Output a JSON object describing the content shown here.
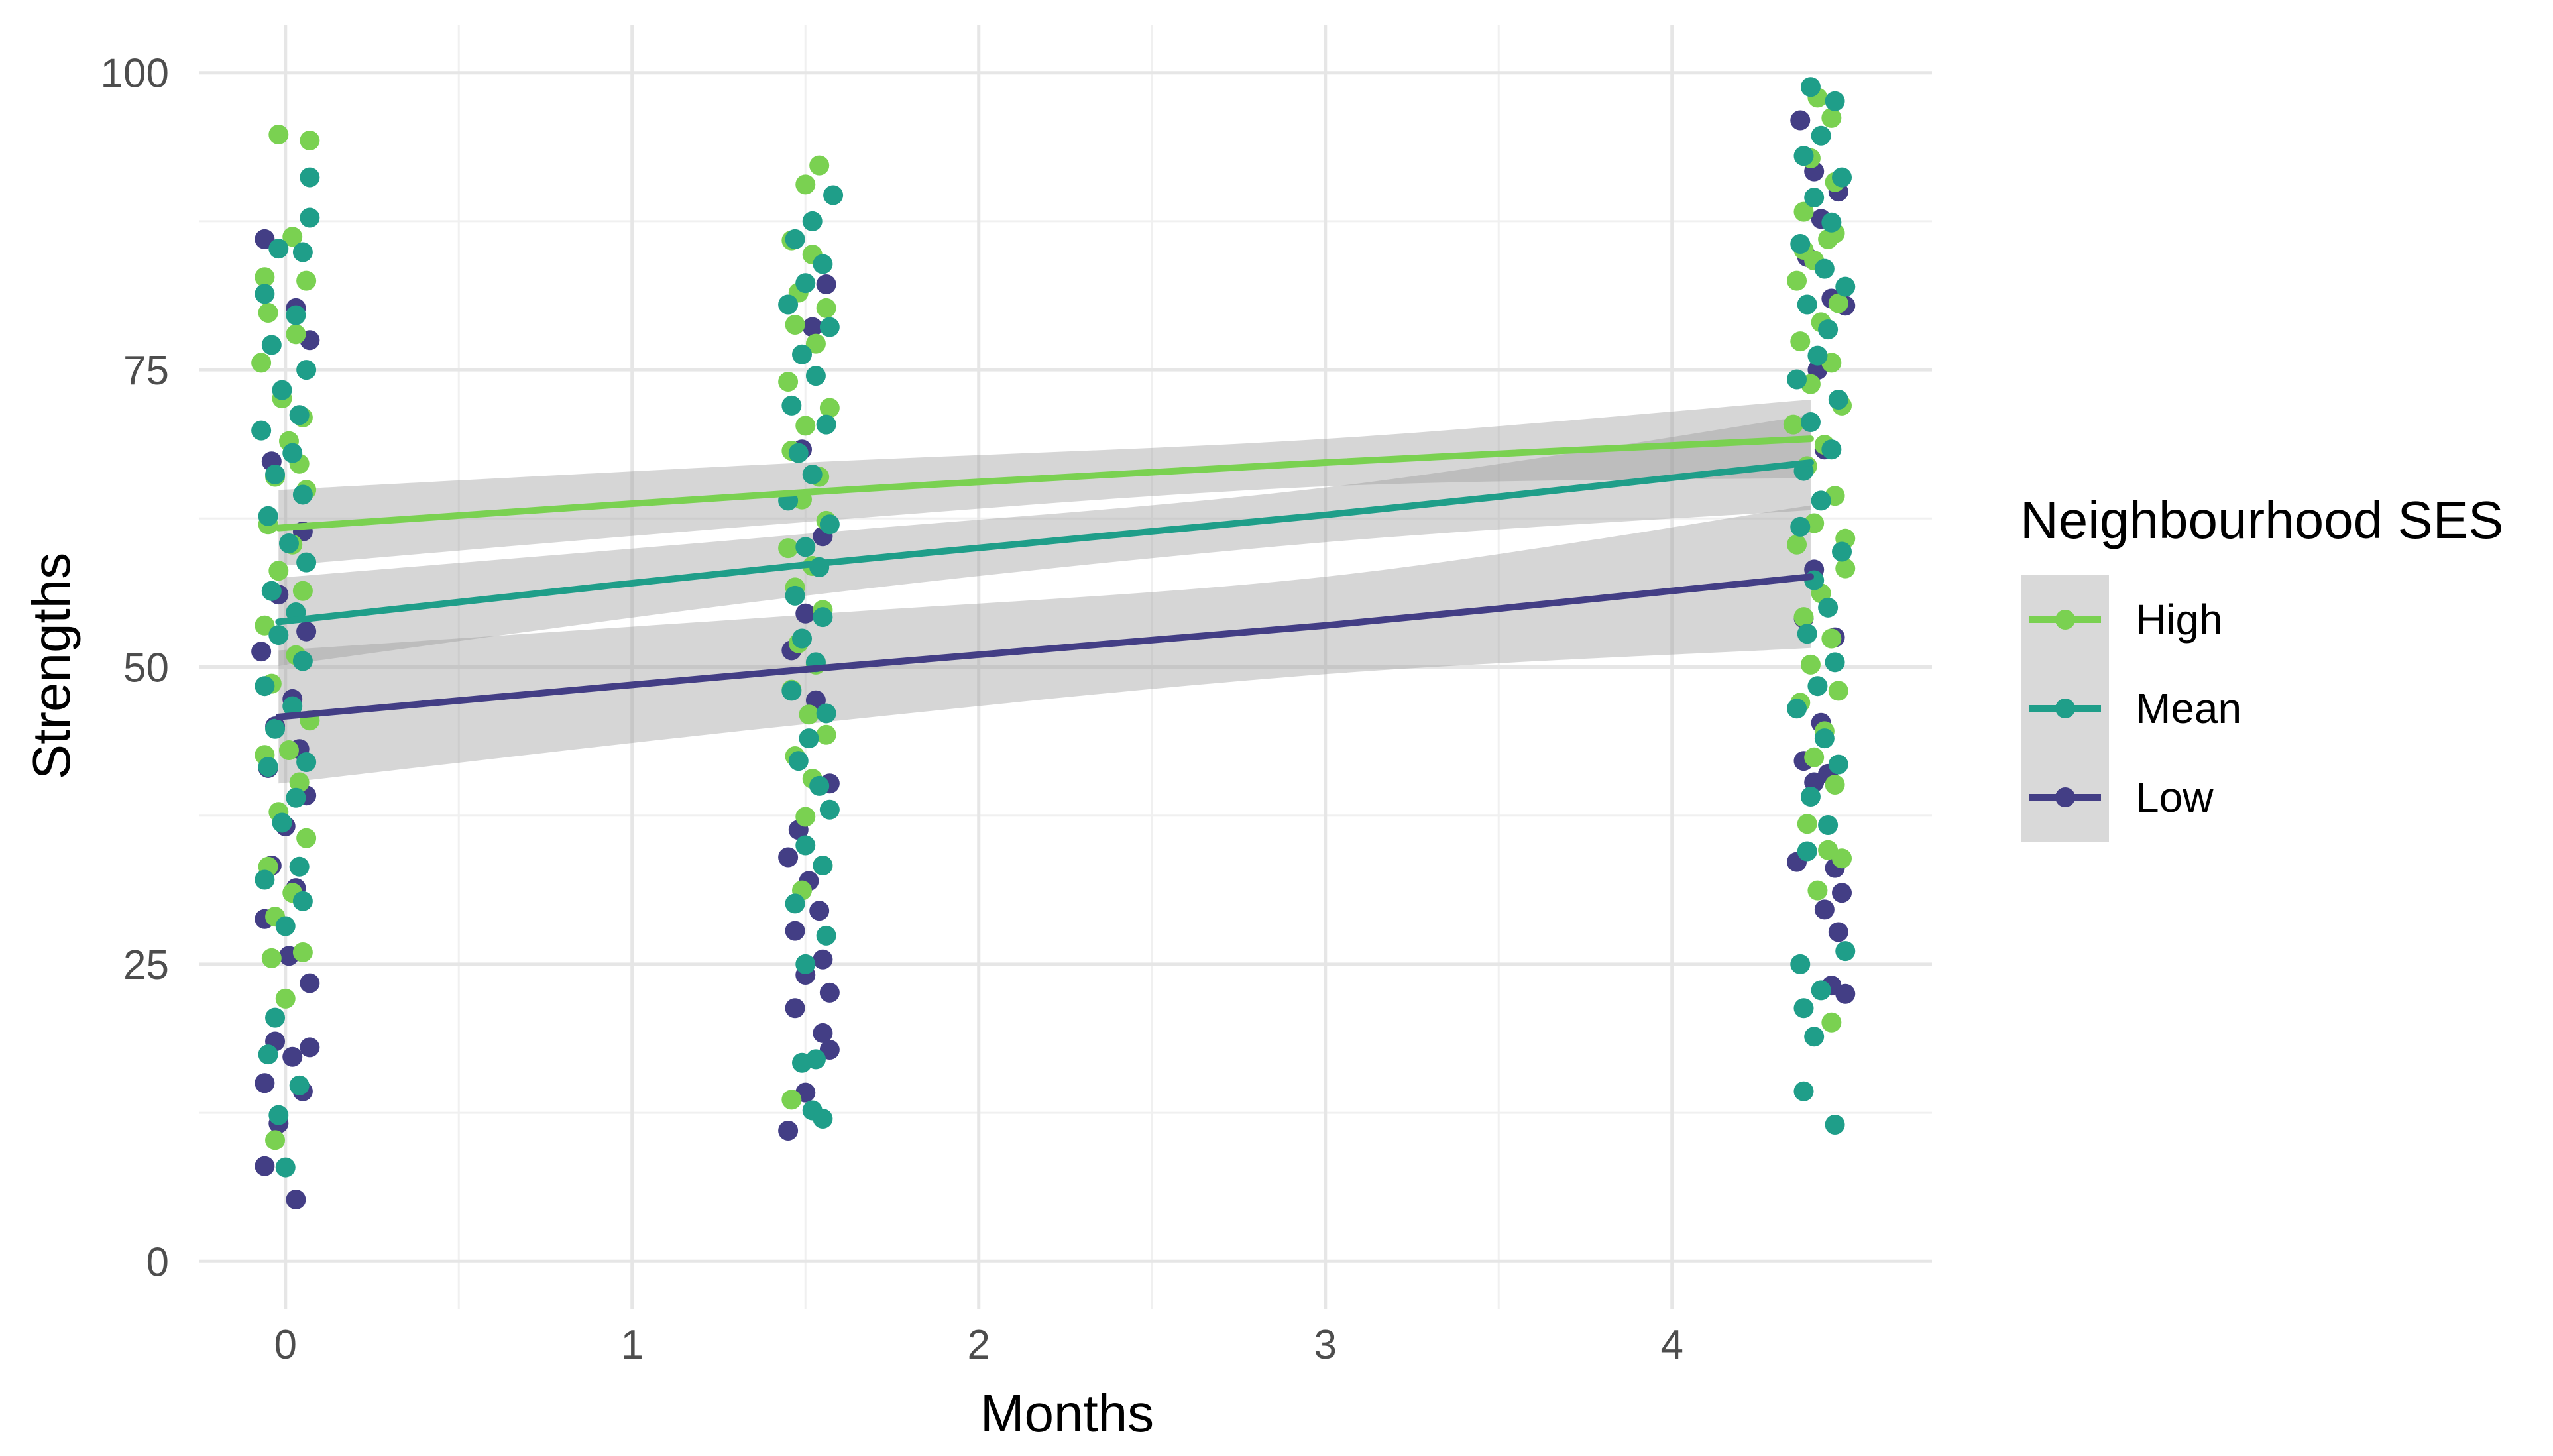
{
  "chart_data": {
    "type": "scatter",
    "title": "",
    "xlabel": "Months",
    "ylabel": "Strengths",
    "xlim": [
      -0.25,
      4.75
    ],
    "ylim": [
      -4,
      104
    ],
    "xticks": [
      0,
      1,
      2,
      3,
      4
    ],
    "yticks": [
      0,
      25,
      50,
      75,
      100
    ],
    "grid": true,
    "legend": {
      "title": "Neighbourhood SES",
      "position": "right"
    },
    "series": [
      {
        "name": "High",
        "color": "#7AD151",
        "smooth": {
          "x": [
            -0.02,
            1.5,
            3.0,
            4.4
          ],
          "y": [
            61.7,
            64.7,
            67.2,
            69.2
          ],
          "band": [
            3.2,
            2.5,
            2.0,
            3.3
          ]
        },
        "points": [
          [
            -0.02,
            94.8
          ],
          [
            0.07,
            94.3
          ],
          [
            -0.05,
            79.8
          ],
          [
            0.02,
            86.2
          ],
          [
            0.06,
            82.5
          ],
          [
            -0.06,
            82.8
          ],
          [
            0.03,
            78.0
          ],
          [
            -0.01,
            72.6
          ],
          [
            0.05,
            71.0
          ],
          [
            -0.07,
            75.6
          ],
          [
            0.01,
            69.0
          ],
          [
            0.04,
            67.1
          ],
          [
            -0.03,
            66.0
          ],
          [
            0.06,
            64.9
          ],
          [
            -0.05,
            62.0
          ],
          [
            0.02,
            60.3
          ],
          [
            -0.02,
            58.1
          ],
          [
            0.05,
            56.4
          ],
          [
            -0.06,
            53.5
          ],
          [
            0.03,
            51.0
          ],
          [
            -0.04,
            48.6
          ],
          [
            0.07,
            45.5
          ],
          [
            0.01,
            43.0
          ],
          [
            -0.06,
            42.6
          ],
          [
            0.04,
            40.3
          ],
          [
            -0.02,
            37.8
          ],
          [
            0.06,
            35.6
          ],
          [
            -0.05,
            33.2
          ],
          [
            0.02,
            31.0
          ],
          [
            -0.03,
            29.0
          ],
          [
            0.05,
            26.0
          ],
          [
            -0.04,
            25.5
          ],
          [
            0.0,
            22.1
          ],
          [
            -0.03,
            10.2
          ],
          [
            1.54,
            92.2
          ],
          [
            1.5,
            90.6
          ],
          [
            1.46,
            85.9
          ],
          [
            1.52,
            84.7
          ],
          [
            1.48,
            81.5
          ],
          [
            1.56,
            80.2
          ],
          [
            1.47,
            78.8
          ],
          [
            1.53,
            77.2
          ],
          [
            1.45,
            74.0
          ],
          [
            1.57,
            71.8
          ],
          [
            1.5,
            70.3
          ],
          [
            1.46,
            68.2
          ],
          [
            1.54,
            66.0
          ],
          [
            1.49,
            64.1
          ],
          [
            1.56,
            62.3
          ],
          [
            1.45,
            60.0
          ],
          [
            1.52,
            58.5
          ],
          [
            1.47,
            56.7
          ],
          [
            1.55,
            54.8
          ],
          [
            1.48,
            52.0
          ],
          [
            1.53,
            50.2
          ],
          [
            1.46,
            48.1
          ],
          [
            1.51,
            46.0
          ],
          [
            1.56,
            44.3
          ],
          [
            1.47,
            42.5
          ],
          [
            1.52,
            40.6
          ],
          [
            1.5,
            37.4
          ],
          [
            1.55,
            33.3
          ],
          [
            1.49,
            31.2
          ],
          [
            1.46,
            13.6
          ],
          [
            4.42,
            97.9
          ],
          [
            4.46,
            96.2
          ],
          [
            4.4,
            92.8
          ],
          [
            4.47,
            90.8
          ],
          [
            4.38,
            88.3
          ],
          [
            4.45,
            86.0
          ],
          [
            4.41,
            84.2
          ],
          [
            4.36,
            82.5
          ],
          [
            4.48,
            80.6
          ],
          [
            4.43,
            79.0
          ],
          [
            4.37,
            77.4
          ],
          [
            4.46,
            75.6
          ],
          [
            4.4,
            73.8
          ],
          [
            4.49,
            72.0
          ],
          [
            4.35,
            70.4
          ],
          [
            4.44,
            68.7
          ],
          [
            4.39,
            66.9
          ],
          [
            4.47,
            64.4
          ],
          [
            4.41,
            62.1
          ],
          [
            4.36,
            60.3
          ],
          [
            4.5,
            58.3
          ],
          [
            4.43,
            56.2
          ],
          [
            4.38,
            54.2
          ],
          [
            4.46,
            52.4
          ],
          [
            4.4,
            50.2
          ],
          [
            4.48,
            48.0
          ],
          [
            4.37,
            47.0
          ],
          [
            4.44,
            44.6
          ],
          [
            4.41,
            42.4
          ],
          [
            4.47,
            40.1
          ],
          [
            4.39,
            36.8
          ],
          [
            4.45,
            34.6
          ],
          [
            4.49,
            33.9
          ],
          [
            4.42,
            31.2
          ],
          [
            4.46,
            20.1
          ],
          [
            4.47,
            86.5
          ],
          [
            4.38,
            85.1
          ],
          [
            4.5,
            60.8
          ]
        ]
      },
      {
        "name": "Mean",
        "color": "#1F9E89",
        "smooth": {
          "x": [
            -0.02,
            1.5,
            3.0,
            4.4
          ],
          "y": [
            53.8,
            58.6,
            62.8,
            67.2
          ],
          "band": [
            3.7,
            2.6,
            2.3,
            4.0
          ]
        },
        "points": [
          [
            0.07,
            91.2
          ],
          [
            0.07,
            87.8
          ],
          [
            -0.02,
            85.2
          ],
          [
            0.05,
            84.9
          ],
          [
            -0.06,
            81.4
          ],
          [
            0.03,
            79.6
          ],
          [
            -0.04,
            77.1
          ],
          [
            0.06,
            75.0
          ],
          [
            -0.01,
            73.3
          ],
          [
            0.04,
            71.2
          ],
          [
            -0.07,
            69.9
          ],
          [
            0.02,
            68.0
          ],
          [
            -0.03,
            66.2
          ],
          [
            0.05,
            64.5
          ],
          [
            -0.05,
            62.7
          ],
          [
            0.01,
            60.4
          ],
          [
            0.06,
            58.8
          ],
          [
            -0.04,
            56.4
          ],
          [
            0.03,
            54.6
          ],
          [
            -0.02,
            52.7
          ],
          [
            0.05,
            50.5
          ],
          [
            -0.06,
            48.4
          ],
          [
            0.02,
            46.7
          ],
          [
            -0.03,
            44.8
          ],
          [
            0.06,
            42.0
          ],
          [
            -0.05,
            41.6
          ],
          [
            0.03,
            39.0
          ],
          [
            -0.01,
            36.9
          ],
          [
            0.04,
            33.2
          ],
          [
            -0.06,
            32.1
          ],
          [
            0.05,
            30.3
          ],
          [
            0.0,
            28.2
          ],
          [
            -0.03,
            20.5
          ],
          [
            -0.05,
            17.4
          ],
          [
            0.04,
            14.8
          ],
          [
            -0.02,
            12.3
          ],
          [
            0.0,
            7.9
          ],
          [
            1.58,
            89.7
          ],
          [
            1.52,
            87.5
          ],
          [
            1.47,
            86.0
          ],
          [
            1.55,
            83.9
          ],
          [
            1.5,
            82.3
          ],
          [
            1.45,
            80.5
          ],
          [
            1.57,
            78.6
          ],
          [
            1.49,
            76.3
          ],
          [
            1.53,
            74.5
          ],
          [
            1.46,
            72.0
          ],
          [
            1.56,
            70.4
          ],
          [
            1.48,
            68.0
          ],
          [
            1.52,
            66.2
          ],
          [
            1.45,
            64.0
          ],
          [
            1.57,
            62.0
          ],
          [
            1.5,
            60.1
          ],
          [
            1.54,
            58.4
          ],
          [
            1.47,
            56.0
          ],
          [
            1.55,
            54.2
          ],
          [
            1.49,
            52.4
          ],
          [
            1.53,
            50.4
          ],
          [
            1.46,
            48.0
          ],
          [
            1.56,
            46.1
          ],
          [
            1.51,
            44.0
          ],
          [
            1.48,
            42.1
          ],
          [
            1.54,
            40.0
          ],
          [
            1.57,
            38.0
          ],
          [
            1.5,
            35.0
          ],
          [
            1.55,
            33.3
          ],
          [
            1.47,
            30.1
          ],
          [
            1.56,
            27.4
          ],
          [
            1.5,
            25.0
          ],
          [
            1.53,
            17.0
          ],
          [
            1.49,
            16.7
          ],
          [
            1.52,
            12.7
          ],
          [
            1.55,
            12.0
          ],
          [
            4.4,
            98.8
          ],
          [
            4.47,
            97.6
          ],
          [
            4.43,
            94.7
          ],
          [
            4.38,
            93.0
          ],
          [
            4.49,
            91.2
          ],
          [
            4.41,
            89.5
          ],
          [
            4.46,
            87.4
          ],
          [
            4.37,
            85.6
          ],
          [
            4.44,
            83.5
          ],
          [
            4.5,
            82.0
          ],
          [
            4.39,
            80.5
          ],
          [
            4.45,
            78.4
          ],
          [
            4.42,
            76.2
          ],
          [
            4.36,
            74.2
          ],
          [
            4.48,
            72.5
          ],
          [
            4.4,
            70.6
          ],
          [
            4.46,
            68.3
          ],
          [
            4.38,
            66.5
          ],
          [
            4.43,
            64.0
          ],
          [
            4.37,
            61.8
          ],
          [
            4.49,
            59.7
          ],
          [
            4.41,
            57.3
          ],
          [
            4.45,
            55.0
          ],
          [
            4.39,
            52.8
          ],
          [
            4.47,
            50.4
          ],
          [
            4.42,
            48.4
          ],
          [
            4.36,
            46.5
          ],
          [
            4.44,
            44.0
          ],
          [
            4.48,
            41.8
          ],
          [
            4.4,
            39.1
          ],
          [
            4.45,
            36.7
          ],
          [
            4.39,
            34.5
          ],
          [
            4.5,
            26.1
          ],
          [
            4.37,
            25.0
          ],
          [
            4.43,
            22.8
          ],
          [
            4.38,
            21.3
          ],
          [
            4.41,
            18.9
          ],
          [
            4.38,
            14.3
          ],
          [
            4.47,
            11.5
          ]
        ]
      },
      {
        "name": "Low",
        "color": "#433E85",
        "smooth": {
          "x": [
            -0.02,
            1.5,
            3.0,
            4.4
          ],
          "y": [
            45.8,
            49.8,
            53.5,
            57.6
          ],
          "band": [
            5.6,
            4.6,
            4.1,
            6.0
          ]
        },
        "points": [
          [
            -0.06,
            86.0
          ],
          [
            0.07,
            77.5
          ],
          [
            0.03,
            80.2
          ],
          [
            -0.04,
            67.3
          ],
          [
            0.05,
            61.4
          ],
          [
            -0.02,
            56.1
          ],
          [
            0.06,
            53.0
          ],
          [
            -0.07,
            51.3
          ],
          [
            0.02,
            47.3
          ],
          [
            -0.03,
            45.0
          ],
          [
            0.04,
            43.1
          ],
          [
            -0.05,
            41.5
          ],
          [
            0.06,
            39.2
          ],
          [
            0.0,
            36.6
          ],
          [
            -0.04,
            33.3
          ],
          [
            0.03,
            31.4
          ],
          [
            -0.06,
            28.8
          ],
          [
            0.01,
            25.7
          ],
          [
            0.07,
            23.4
          ],
          [
            -0.03,
            18.5
          ],
          [
            0.07,
            18.0
          ],
          [
            0.02,
            17.2
          ],
          [
            -0.06,
            15.0
          ],
          [
            0.05,
            14.3
          ],
          [
            -0.02,
            11.6
          ],
          [
            -0.06,
            8.0
          ],
          [
            0.03,
            5.2
          ],
          [
            1.56,
            82.2
          ],
          [
            1.52,
            78.6
          ],
          [
            1.49,
            68.3
          ],
          [
            1.55,
            61.0
          ],
          [
            1.5,
            54.5
          ],
          [
            1.46,
            51.4
          ],
          [
            1.53,
            47.2
          ],
          [
            1.57,
            40.2
          ],
          [
            1.48,
            36.3
          ],
          [
            1.45,
            34.0
          ],
          [
            1.51,
            32.0
          ],
          [
            1.54,
            29.5
          ],
          [
            1.47,
            27.8
          ],
          [
            1.55,
            25.4
          ],
          [
            1.5,
            24.1
          ],
          [
            1.57,
            22.6
          ],
          [
            1.47,
            21.3
          ],
          [
            1.55,
            19.2
          ],
          [
            1.57,
            17.8
          ],
          [
            1.5,
            14.2
          ],
          [
            1.45,
            11.0
          ],
          [
            4.37,
            96.0
          ],
          [
            4.41,
            91.7
          ],
          [
            4.48,
            90.0
          ],
          [
            4.43,
            87.7
          ],
          [
            4.39,
            84.5
          ],
          [
            4.46,
            81.0
          ],
          [
            4.42,
            75.0
          ],
          [
            4.5,
            80.4
          ],
          [
            4.44,
            68.3
          ],
          [
            4.41,
            58.2
          ],
          [
            4.38,
            54.1
          ],
          [
            4.47,
            52.5
          ],
          [
            4.43,
            45.3
          ],
          [
            4.38,
            42.1
          ],
          [
            4.45,
            41.0
          ],
          [
            4.41,
            40.3
          ],
          [
            4.36,
            33.6
          ],
          [
            4.47,
            33.1
          ],
          [
            4.49,
            31.0
          ],
          [
            4.44,
            29.6
          ],
          [
            4.48,
            27.7
          ],
          [
            4.46,
            23.2
          ],
          [
            4.5,
            22.5
          ]
        ]
      }
    ]
  }
}
